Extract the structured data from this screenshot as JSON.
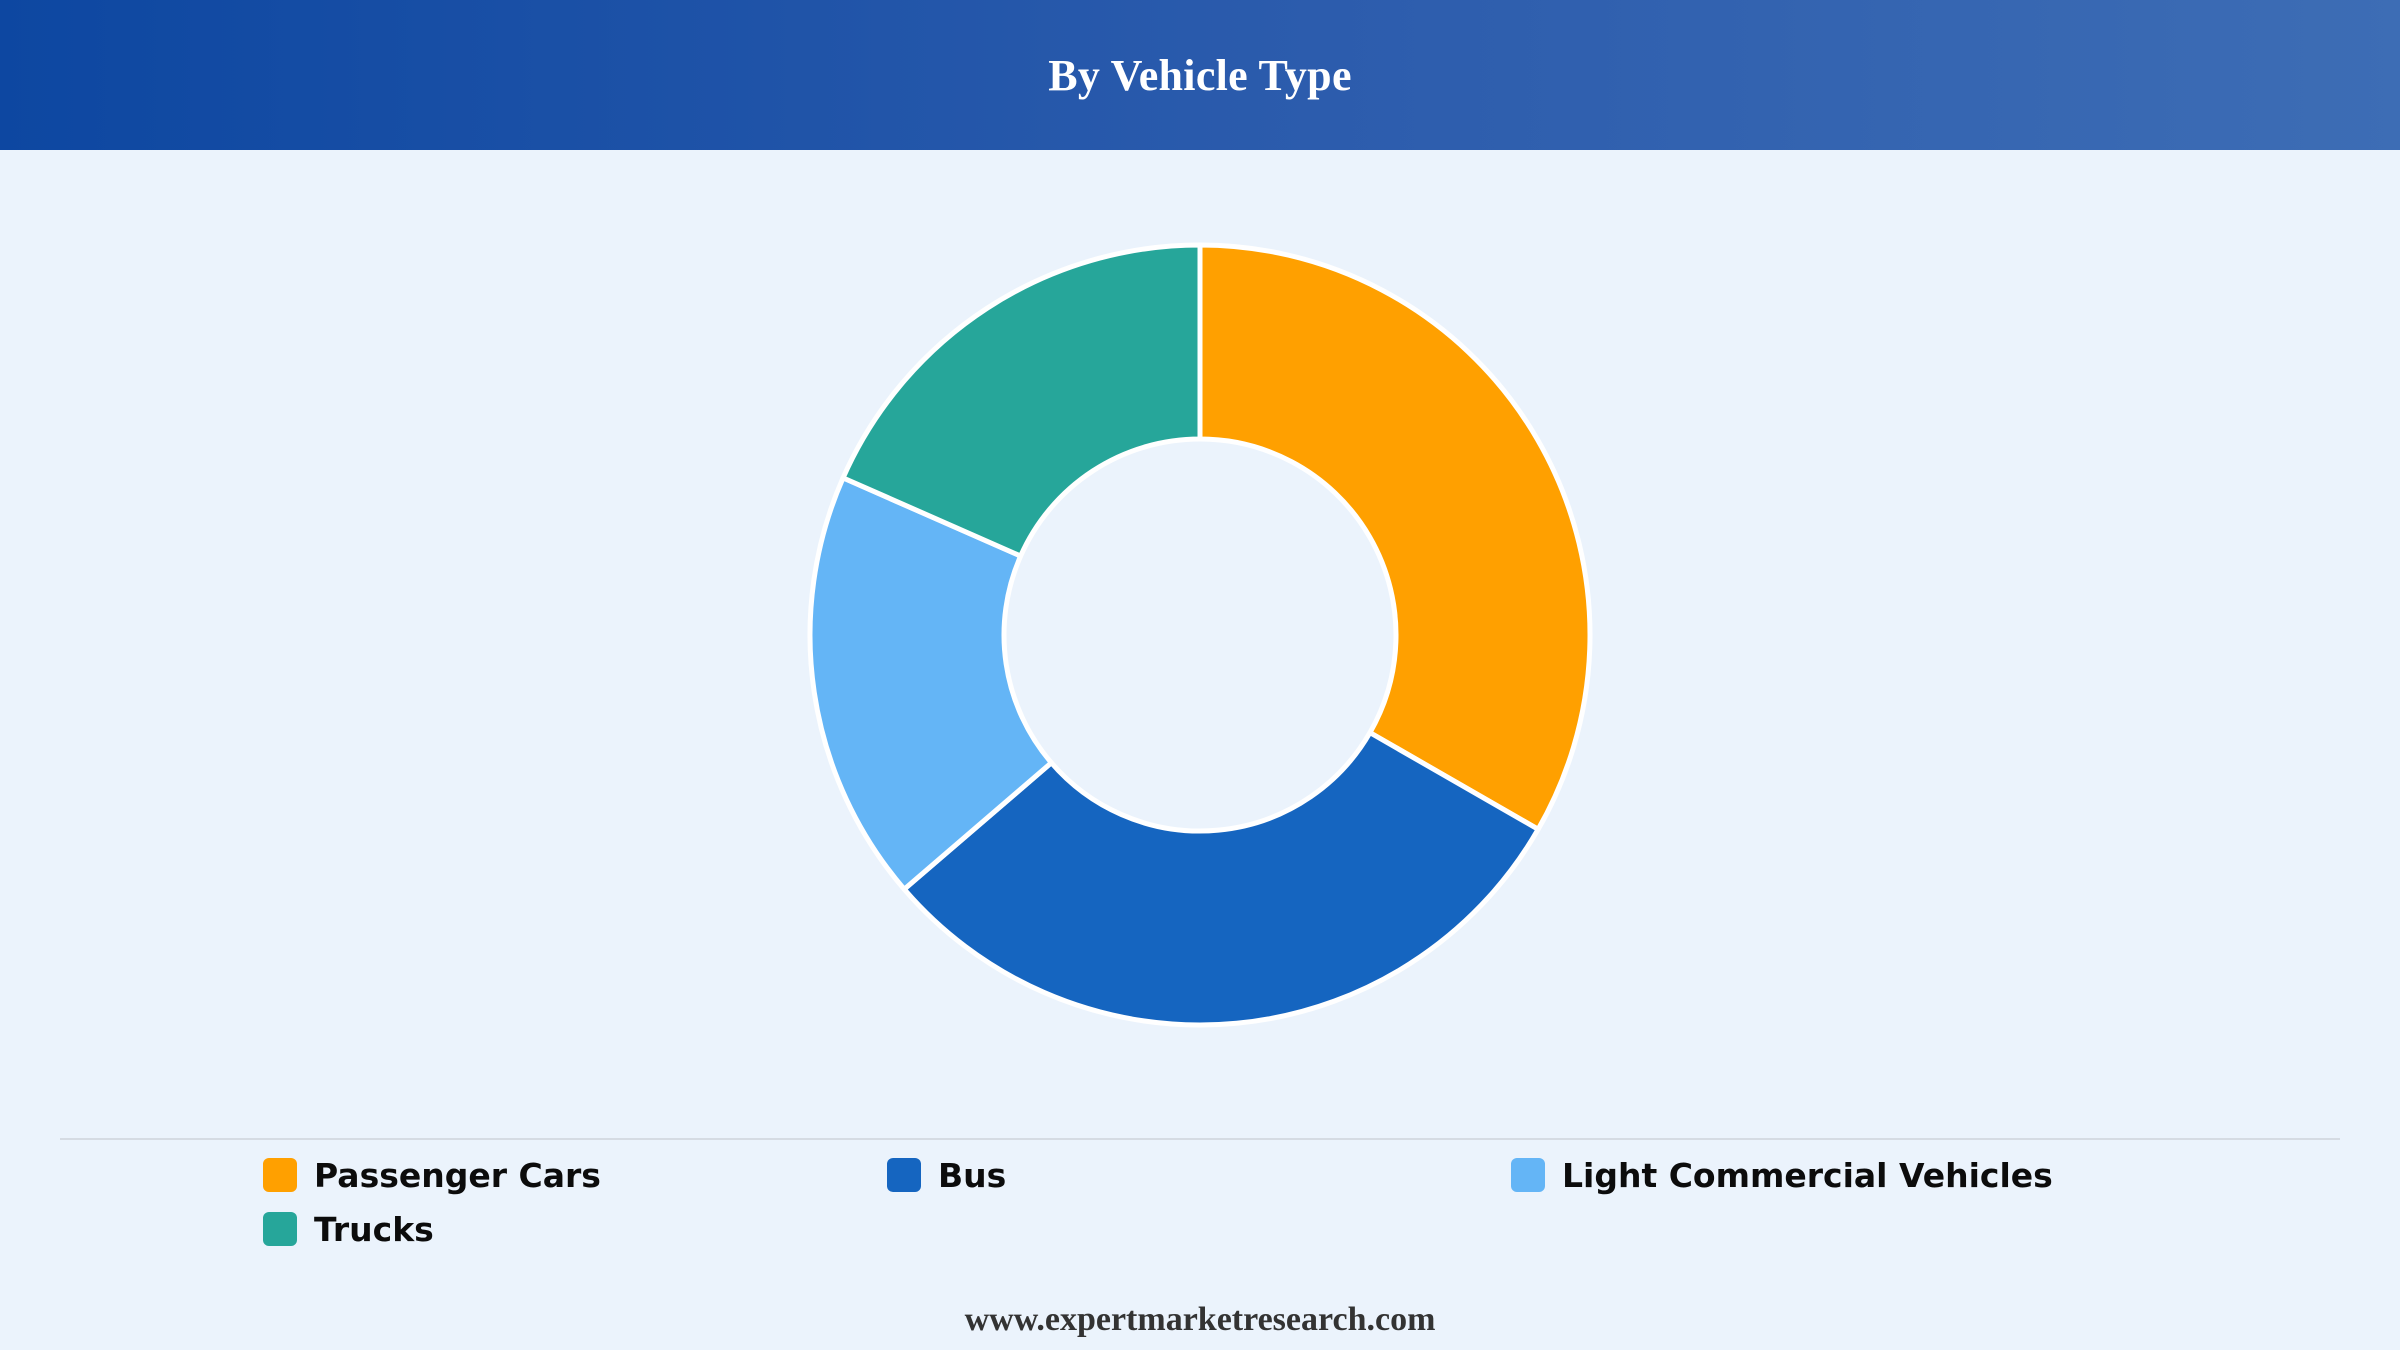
{
  "header": {
    "title": "By Vehicle Type"
  },
  "chart_data": {
    "type": "pie",
    "variant": "donut",
    "title": "By Vehicle Type",
    "categories": [
      "Passenger Cars",
      "Bus",
      "Light Commercial Vehicles",
      "Trucks"
    ],
    "values": [
      33.3,
      30.4,
      17.9,
      18.4
    ],
    "colors": [
      "#ffa000",
      "#1565c0",
      "#64b5f6",
      "#26a69a"
    ],
    "legend_position": "bottom",
    "start_angle": "12 o'clock",
    "direction": "clockwise"
  },
  "legend": {
    "items": [
      {
        "label": "Passenger Cars",
        "color": "#ffa000"
      },
      {
        "label": "Bus",
        "color": "#1565c0"
      },
      {
        "label": "Light Commercial Vehicles",
        "color": "#64b5f6"
      },
      {
        "label": "Trucks",
        "color": "#26a69a"
      }
    ]
  },
  "footer": {
    "text": "www.expertmarketresearch.com"
  }
}
